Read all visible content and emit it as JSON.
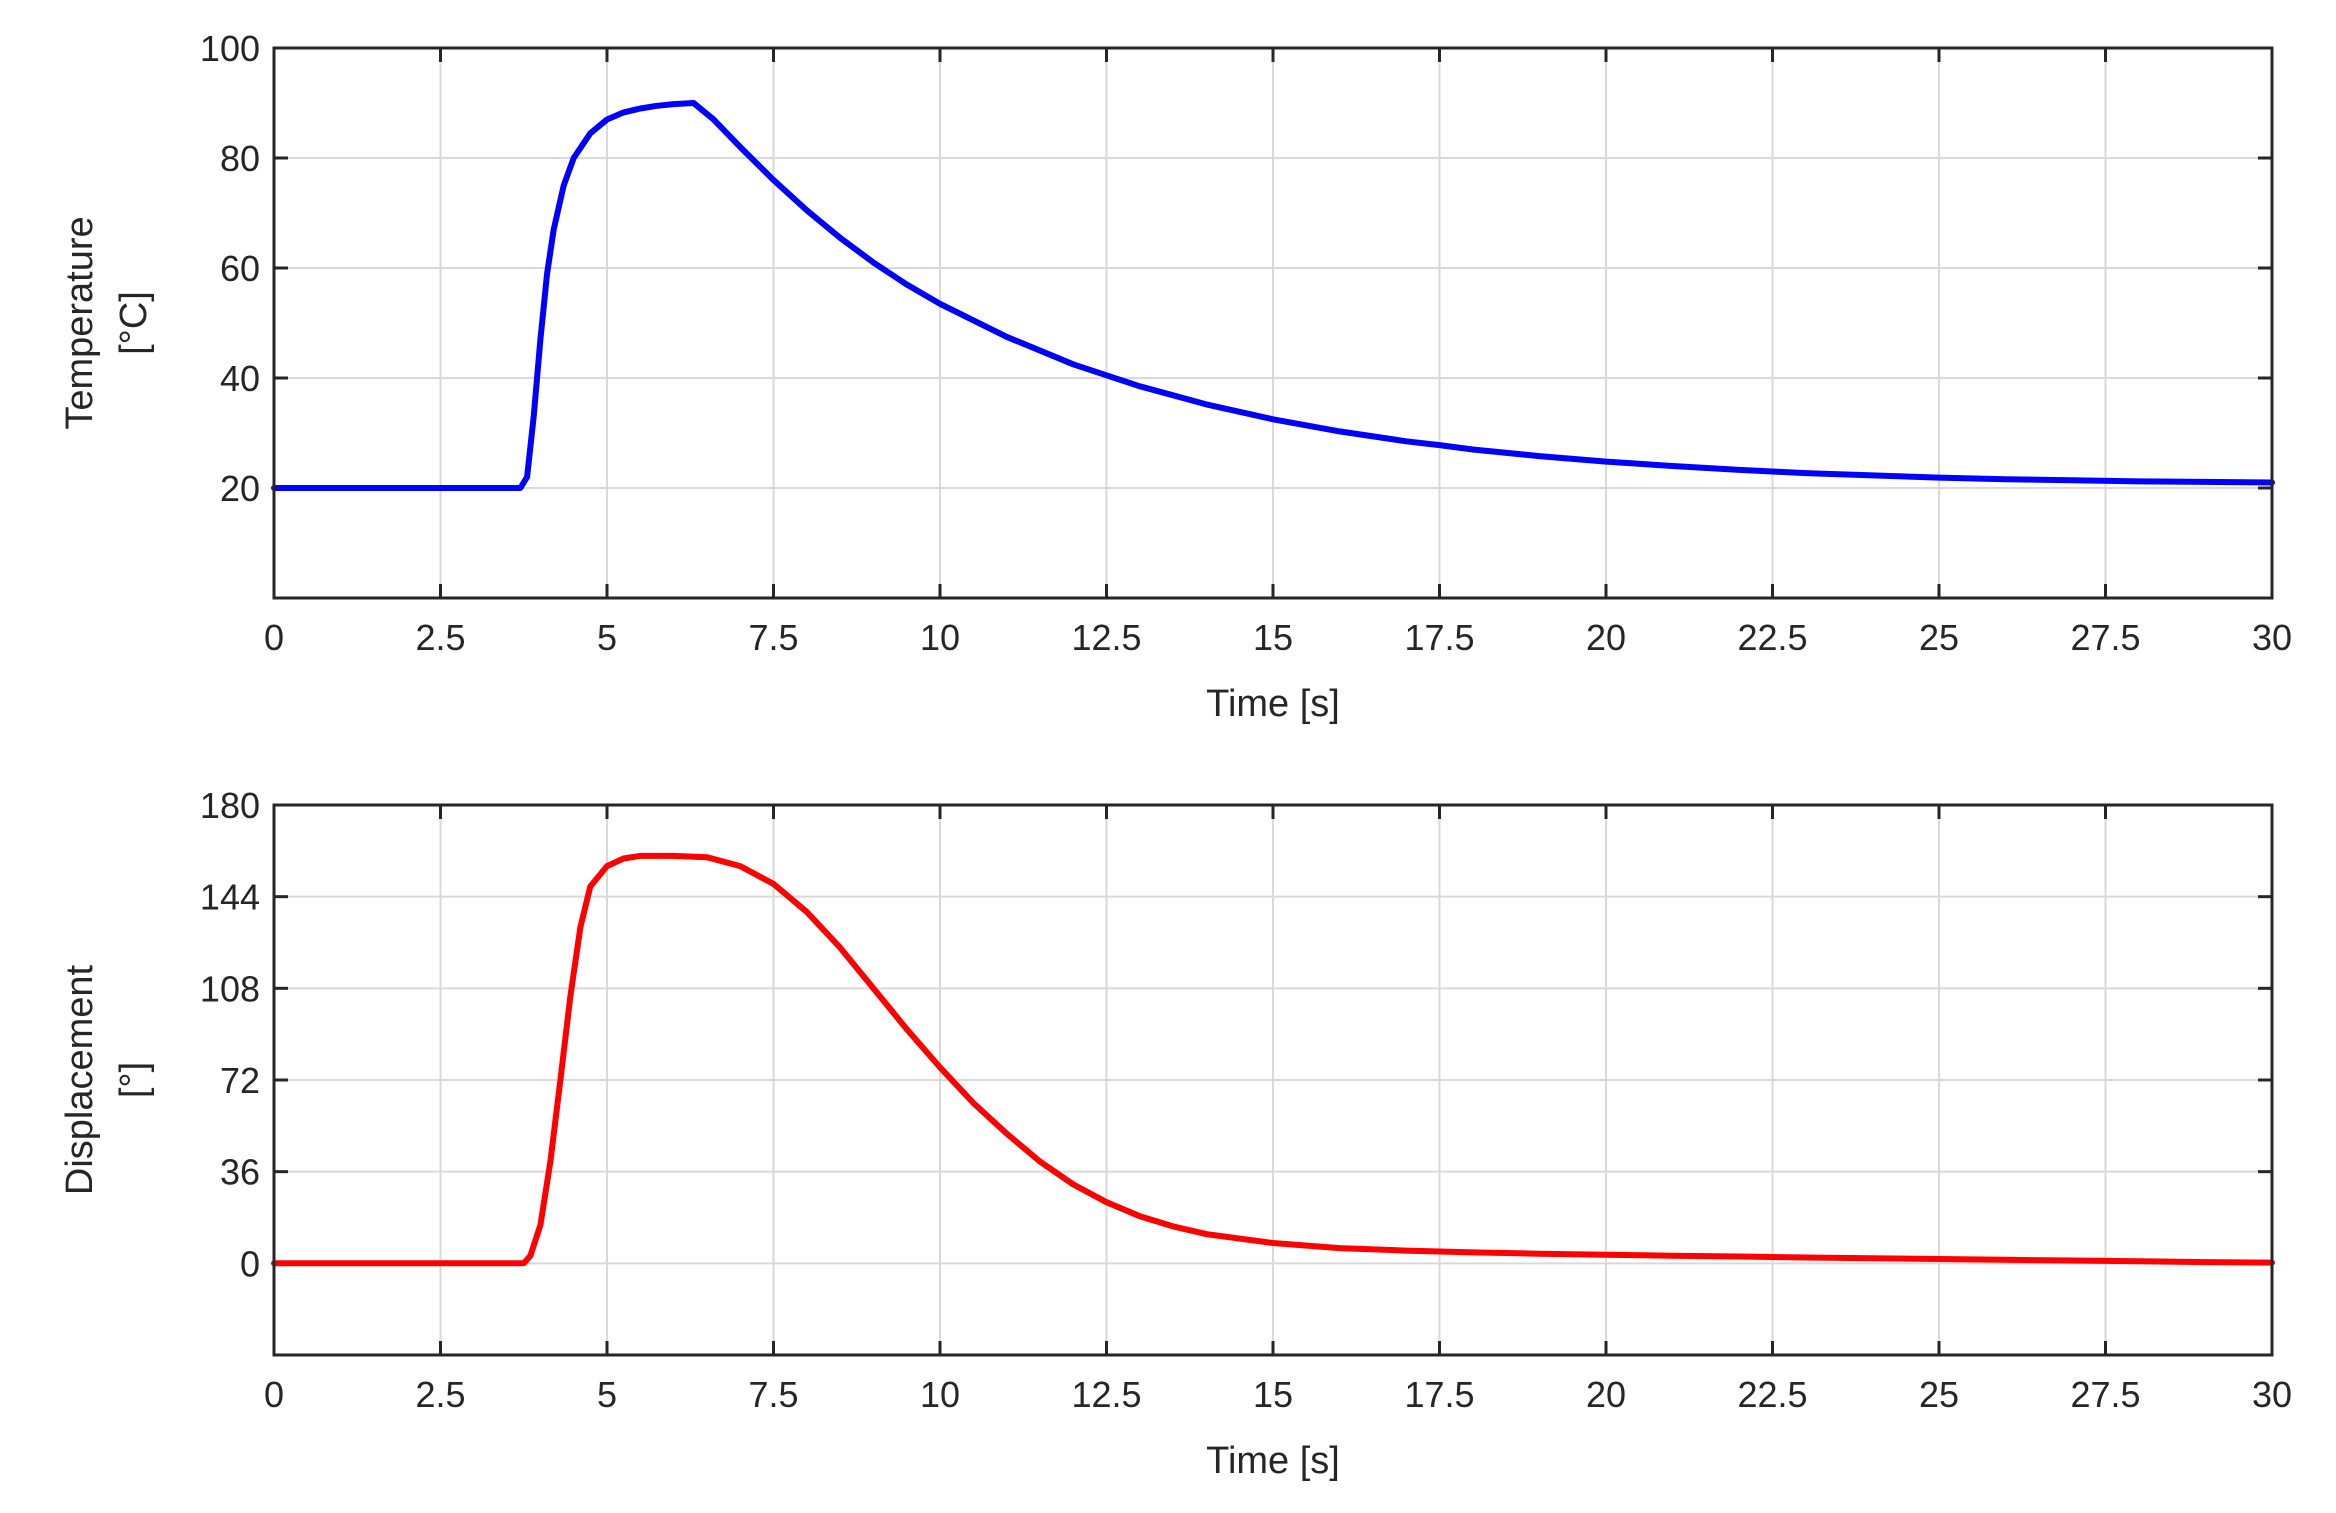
{
  "chart_data": [
    {
      "type": "line",
      "xlabel": "Time [s]",
      "ylabel_lines": [
        "Temperature",
        "[°C]"
      ],
      "xlim": [
        0,
        30
      ],
      "ylim": [
        0,
        100
      ],
      "xticks": [
        0,
        2.5,
        5,
        7.5,
        10,
        12.5,
        15,
        17.5,
        20,
        22.5,
        25,
        27.5,
        30
      ],
      "xtick_labels": [
        "0",
        "2.5",
        "5",
        "7.5",
        "10",
        "12.5",
        "15",
        "17.5",
        "20",
        "22.5",
        "25",
        "27.5",
        "30"
      ],
      "yticks": [
        20,
        40,
        60,
        80,
        100
      ],
      "ytick_labels": [
        "20",
        "40",
        "60",
        "80",
        "100"
      ],
      "grid": true,
      "series": [
        {
          "color": "#0000ff",
          "x": [
            0,
            3.7,
            3.8,
            3.9,
            4.0,
            4.1,
            4.2,
            4.35,
            4.5,
            4.75,
            5.0,
            5.25,
            5.5,
            5.75,
            6.0,
            6.3,
            6.6,
            7.0,
            7.5,
            8.0,
            8.5,
            9.0,
            9.5,
            10.0,
            11.0,
            12.0,
            12.5,
            13.0,
            14.0,
            15.0,
            16.0,
            17.0,
            17.5,
            18.0,
            19.0,
            20.0,
            21.0,
            22.0,
            22.5,
            23.0,
            24.0,
            25.0,
            26.0,
            27.0,
            28.0,
            29.0,
            30.0
          ],
          "y": [
            20,
            20,
            22,
            33,
            47,
            59,
            67,
            75,
            80,
            84.5,
            87,
            88.3,
            89,
            89.5,
            89.8,
            90,
            87,
            82,
            76,
            70.5,
            65.5,
            61,
            57,
            53.5,
            47.5,
            42.5,
            40.5,
            38.5,
            35.2,
            32.5,
            30.3,
            28.5,
            27.8,
            27,
            25.8,
            24.8,
            24,
            23.3,
            23,
            22.7,
            22.3,
            21.9,
            21.6,
            21.4,
            21.2,
            21.1,
            21
          ]
        }
      ]
    },
    {
      "type": "line",
      "xlabel": "Time [s]",
      "ylabel_lines": [
        "Displacement",
        "[°]"
      ],
      "xlim": [
        0,
        30
      ],
      "ylim": [
        -36,
        180
      ],
      "xticks": [
        0,
        2.5,
        5,
        7.5,
        10,
        12.5,
        15,
        17.5,
        20,
        22.5,
        25,
        27.5,
        30
      ],
      "xtick_labels": [
        "0",
        "2.5",
        "5",
        "7.5",
        "10",
        "12.5",
        "15",
        "17.5",
        "20",
        "22.5",
        "25",
        "27.5",
        "30"
      ],
      "yticks": [
        0,
        36,
        72,
        108,
        144,
        180
      ],
      "ytick_labels": [
        "0",
        "36",
        "72",
        "108",
        "144",
        "180"
      ],
      "grid": true,
      "series": [
        {
          "color": "#ff0000",
          "x": [
            0,
            3.75,
            3.85,
            4.0,
            4.15,
            4.3,
            4.45,
            4.6,
            4.75,
            5.0,
            5.25,
            5.5,
            6.0,
            6.5,
            7.0,
            7.5,
            8.0,
            8.5,
            9.0,
            9.5,
            10.0,
            10.5,
            11.0,
            11.5,
            12.0,
            12.5,
            13.0,
            13.5,
            14.0,
            15.0,
            16.0,
            17.0,
            18.0,
            19.0,
            20.0,
            21.0,
            22.0,
            23.0,
            24.0,
            25.0,
            26.0,
            27.0,
            28.0,
            29.0,
            30.0
          ],
          "y": [
            0,
            0,
            3,
            15,
            40,
            72,
            105,
            132,
            148,
            156,
            159,
            160,
            160,
            159.5,
            156,
            149,
            138,
            124,
            108,
            92,
            77,
            63,
            51,
            40,
            31,
            24,
            18.5,
            14.5,
            11.5,
            8,
            6,
            5,
            4.3,
            3.8,
            3.4,
            3.0,
            2.7,
            2.3,
            2.0,
            1.7,
            1.4,
            1.1,
            0.8,
            0.5,
            0.3
          ]
        }
      ]
    }
  ]
}
